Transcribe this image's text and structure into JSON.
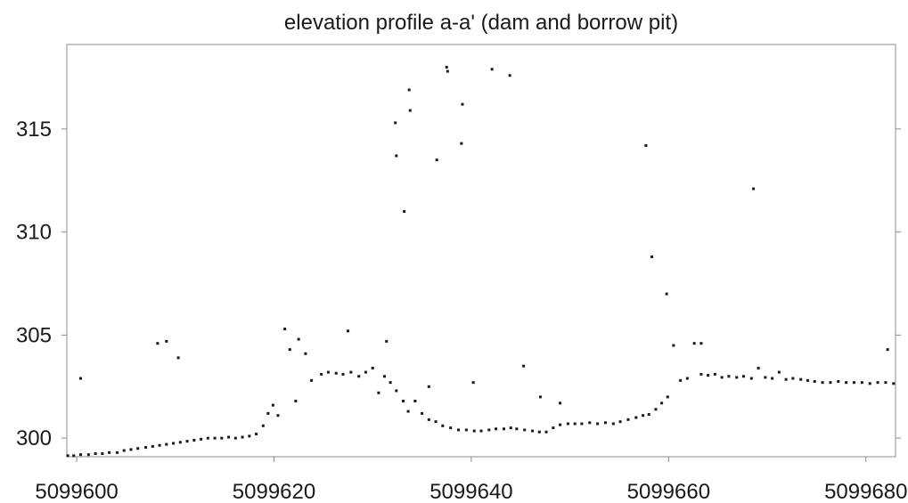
{
  "chart_data": {
    "type": "scatter",
    "title": "elevation profile a-a' (dam and borrow pit)",
    "xlabel": "",
    "ylabel": "",
    "xlim": [
      5099599,
      5099683
    ],
    "ylim": [
      299.1,
      319.1
    ],
    "xticks": [
      5099600,
      5099620,
      5099640,
      5099660,
      5099680
    ],
    "xtick_labels": [
      "5099600",
      "5099620",
      "5099640",
      "5099660",
      "5099680"
    ],
    "yticks": [
      300,
      305,
      310,
      315
    ],
    "ytick_labels": [
      "300",
      "305",
      "310",
      "315"
    ],
    "grid": false,
    "legend": null,
    "point_color": "#1a1a1a",
    "frame_color": "#8c8c8c",
    "series": [
      {
        "points": [
          [
            5099599.1,
            299.15
          ],
          [
            5099599.7,
            299.15
          ],
          [
            5099600.4,
            299.2
          ],
          [
            5099601.2,
            299.2
          ],
          [
            5099601.9,
            299.25
          ],
          [
            5099602.6,
            299.25
          ],
          [
            5099603.3,
            299.3
          ],
          [
            5099604.1,
            299.3
          ],
          [
            5099604.8,
            299.4
          ],
          [
            5099605.5,
            299.45
          ],
          [
            5099606.2,
            299.5
          ],
          [
            5099607.0,
            299.55
          ],
          [
            5099607.7,
            299.6
          ],
          [
            5099608.4,
            299.65
          ],
          [
            5099609.1,
            299.7
          ],
          [
            5099609.8,
            299.75
          ],
          [
            5099610.5,
            299.8
          ],
          [
            5099611.2,
            299.85
          ],
          [
            5099611.9,
            299.9
          ],
          [
            5099612.6,
            299.95
          ],
          [
            5099613.3,
            300.0
          ],
          [
            5099614.0,
            300.0
          ],
          [
            5099614.7,
            300.0
          ],
          [
            5099615.4,
            300.05
          ],
          [
            5099616.1,
            300.0
          ],
          [
            5099616.8,
            300.05
          ],
          [
            5099617.5,
            300.1
          ],
          [
            5099618.2,
            300.2
          ],
          [
            5099618.9,
            300.6
          ],
          [
            5099619.4,
            301.2
          ],
          [
            5099619.9,
            301.6
          ],
          [
            5099620.4,
            301.1
          ],
          [
            5099621.6,
            304.3
          ],
          [
            5099622.2,
            301.8
          ],
          [
            5099623.2,
            304.1
          ],
          [
            5099623.8,
            302.8
          ],
          [
            5099624.8,
            303.1
          ],
          [
            5099625.5,
            303.2
          ],
          [
            5099626.3,
            303.15
          ],
          [
            5099627.0,
            303.1
          ],
          [
            5099627.8,
            303.2
          ],
          [
            5099628.6,
            303.0
          ],
          [
            5099629.3,
            303.2
          ],
          [
            5099630.0,
            303.4
          ],
          [
            5099630.6,
            302.2
          ],
          [
            5099631.2,
            303.0
          ],
          [
            5099631.8,
            302.7
          ],
          [
            5099632.4,
            302.3
          ],
          [
            5099633.1,
            301.8
          ],
          [
            5099633.6,
            301.3
          ],
          [
            5099634.3,
            301.8
          ],
          [
            5099635.0,
            301.2
          ],
          [
            5099635.7,
            300.9
          ],
          [
            5099636.4,
            300.8
          ],
          [
            5099637.1,
            300.6
          ],
          [
            5099637.9,
            300.5
          ],
          [
            5099638.7,
            300.4
          ],
          [
            5099639.5,
            300.4
          ],
          [
            5099640.3,
            300.35
          ],
          [
            5099641.0,
            300.35
          ],
          [
            5099641.8,
            300.4
          ],
          [
            5099642.5,
            300.45
          ],
          [
            5099643.3,
            300.45
          ],
          [
            5099644.0,
            300.5
          ],
          [
            5099644.6,
            300.45
          ],
          [
            5099645.4,
            300.4
          ],
          [
            5099646.2,
            300.35
          ],
          [
            5099646.9,
            300.3
          ],
          [
            5099647.6,
            300.3
          ],
          [
            5099648.3,
            300.5
          ],
          [
            5099649.0,
            300.65
          ],
          [
            5099649.8,
            300.7
          ],
          [
            5099650.5,
            300.7
          ],
          [
            5099651.2,
            300.7
          ],
          [
            5099652.0,
            300.75
          ],
          [
            5099652.8,
            300.7
          ],
          [
            5099653.6,
            300.75
          ],
          [
            5099654.4,
            300.7
          ],
          [
            5099655.1,
            300.8
          ],
          [
            5099655.9,
            300.9
          ],
          [
            5099656.7,
            301.0
          ],
          [
            5099657.4,
            301.1
          ],
          [
            5099658.0,
            301.15
          ],
          [
            5099658.7,
            301.4
          ],
          [
            5099659.3,
            301.7
          ],
          [
            5099659.9,
            302.0
          ],
          [
            5099660.5,
            304.5
          ],
          [
            5099661.2,
            302.8
          ],
          [
            5099661.9,
            302.9
          ],
          [
            5099662.6,
            304.6
          ],
          [
            5099663.3,
            303.1
          ],
          [
            5099664.0,
            303.05
          ],
          [
            5099664.7,
            303.1
          ],
          [
            5099665.4,
            302.95
          ],
          [
            5099666.1,
            303.0
          ],
          [
            5099666.9,
            302.95
          ],
          [
            5099667.6,
            303.0
          ],
          [
            5099668.4,
            302.9
          ],
          [
            5099669.1,
            303.4
          ],
          [
            5099669.8,
            302.95
          ],
          [
            5099670.5,
            302.9
          ],
          [
            5099671.2,
            303.2
          ],
          [
            5099671.9,
            302.85
          ],
          [
            5099672.6,
            302.9
          ],
          [
            5099673.4,
            302.85
          ],
          [
            5099674.1,
            302.8
          ],
          [
            5099674.8,
            302.75
          ],
          [
            5099675.6,
            302.7
          ],
          [
            5099676.4,
            302.7
          ],
          [
            5099677.2,
            302.75
          ],
          [
            5099678.0,
            302.7
          ],
          [
            5099678.8,
            302.7
          ],
          [
            5099679.6,
            302.7
          ],
          [
            5099680.4,
            302.65
          ],
          [
            5099681.2,
            302.7
          ],
          [
            5099682.0,
            302.7
          ],
          [
            5099682.8,
            302.65
          ],
          [
            5099600.4,
            302.9
          ],
          [
            5099608.2,
            304.6
          ],
          [
            5099609.1,
            304.7
          ],
          [
            5099610.3,
            303.9
          ],
          [
            5099621.1,
            305.3
          ],
          [
            5099622.5,
            304.8
          ],
          [
            5099627.5,
            305.2
          ],
          [
            5099631.4,
            304.7
          ],
          [
            5099632.3,
            315.3
          ],
          [
            5099632.4,
            313.7
          ],
          [
            5099633.2,
            311.0
          ],
          [
            5099633.7,
            316.9
          ],
          [
            5099633.8,
            315.9
          ],
          [
            5099635.7,
            302.5
          ],
          [
            5099636.5,
            313.5
          ],
          [
            5099637.5,
            318.0
          ],
          [
            5099637.6,
            317.8
          ],
          [
            5099639.0,
            314.3
          ],
          [
            5099639.1,
            316.2
          ],
          [
            5099640.2,
            302.7
          ],
          [
            5099642.1,
            317.9
          ],
          [
            5099643.9,
            317.6
          ],
          [
            5099645.3,
            303.5
          ],
          [
            5099647.0,
            302.0
          ],
          [
            5099649.0,
            301.7
          ],
          [
            5099657.7,
            314.2
          ],
          [
            5099658.3,
            308.8
          ],
          [
            5099659.8,
            307.0
          ],
          [
            5099663.3,
            304.6
          ],
          [
            5099668.6,
            312.1
          ],
          [
            5099682.2,
            304.3
          ]
        ]
      }
    ]
  }
}
